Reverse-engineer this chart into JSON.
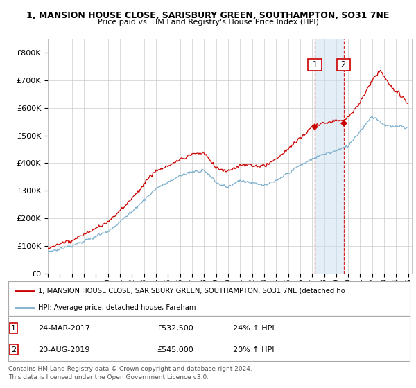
{
  "title1": "1, MANSION HOUSE CLOSE, SARISBURY GREEN, SOUTHAMPTON, SO31 7NE",
  "title2": "Price paid vs. HM Land Registry's House Price Index (HPI)",
  "ylim": [
    0,
    850000
  ],
  "yticks": [
    0,
    100000,
    200000,
    300000,
    400000,
    500000,
    600000,
    700000,
    800000
  ],
  "ytick_labels": [
    "£0",
    "£100K",
    "£200K",
    "£300K",
    "£400K",
    "£500K",
    "£600K",
    "£700K",
    "£800K"
  ],
  "sale1_date": 2017.22,
  "sale1_price": 532500,
  "sale2_date": 2019.63,
  "sale2_price": 545000,
  "red_color": "#cc0000",
  "blue_color": "#7aaecc",
  "shade_color": "#c8dff0",
  "legend_entry1": "1, MANSION HOUSE CLOSE, SARISBURY GREEN, SOUTHAMPTON, SO31 7NE (detached ho",
  "legend_entry2": "HPI: Average price, detached house, Fareham",
  "table_row1": [
    "1",
    "24-MAR-2017",
    "£532,500",
    "24% ↑ HPI"
  ],
  "table_row2": [
    "2",
    "20-AUG-2019",
    "£545,000",
    "20% ↑ HPI"
  ],
  "footnote1": "Contains HM Land Registry data © Crown copyright and database right 2024.",
  "footnote2": "This data is licensed under the Open Government Licence v3.0.",
  "background_color": "#ffffff",
  "grid_color": "#cccccc",
  "xlim_start": 1995,
  "xlim_end": 2025.3
}
